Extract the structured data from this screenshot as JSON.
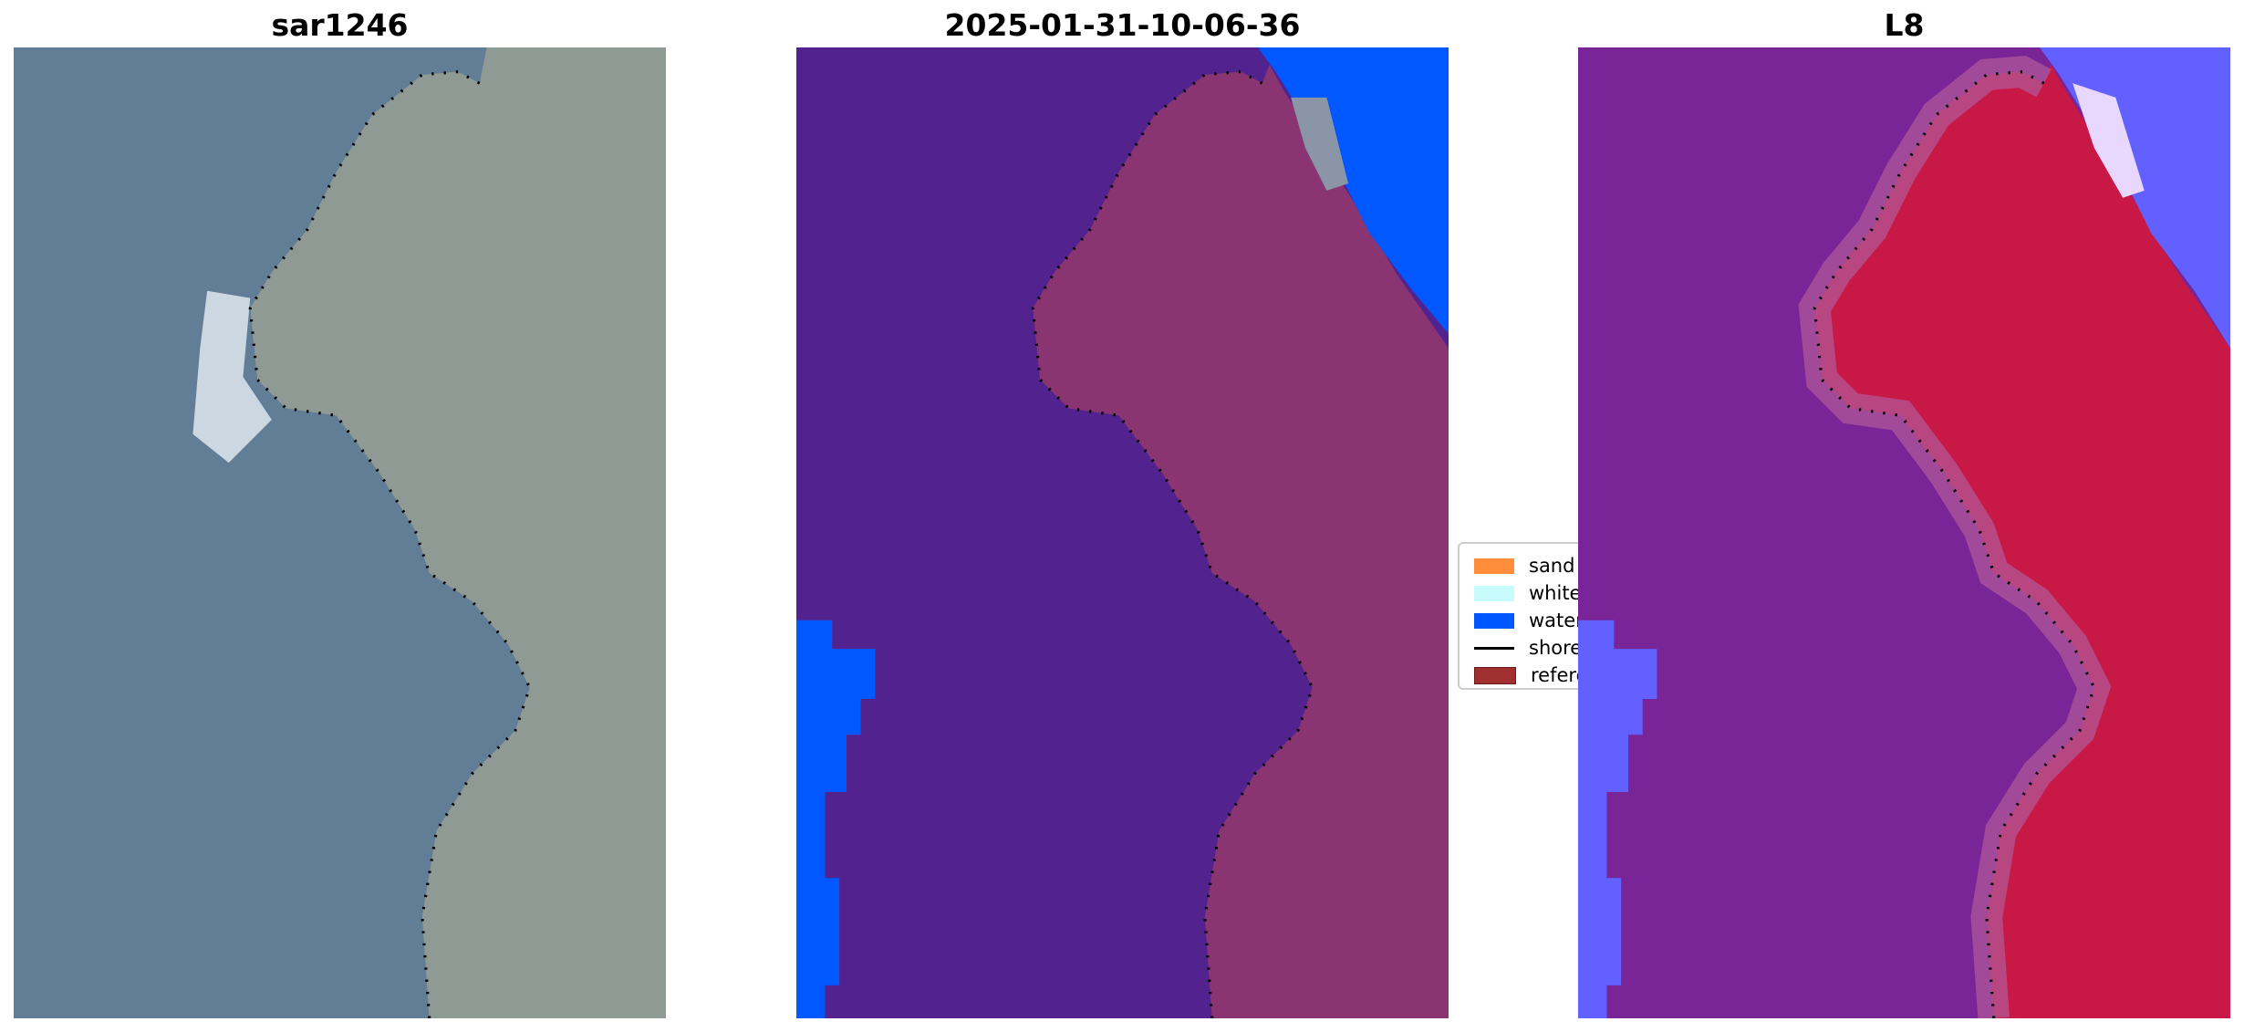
{
  "panels": [
    {
      "title": "sar1246"
    },
    {
      "title": "2025-01-31-10-06-36"
    },
    {
      "title": "L8"
    }
  ],
  "legend": {
    "items": [
      {
        "label": "sand",
        "color": "#ff8c3a"
      },
      {
        "label": "whitewater",
        "color": "#c8fcfc"
      },
      {
        "label": "water",
        "color": "#0057ff"
      },
      {
        "label": "shoreline",
        "color": "#000000"
      },
      {
        "label": "reference",
        "color": "#a03030"
      }
    ]
  },
  "colors": {
    "rgb_water": "#627d96",
    "rgb_land": "#8f9a94",
    "class_water_bg": "#52238f",
    "class_land": "#8a3572",
    "class_water": "#0058fe",
    "ndwi_water": "#7a2597",
    "ndwi_land": "#c81845",
    "ndwi_blue": "#6260ff"
  }
}
